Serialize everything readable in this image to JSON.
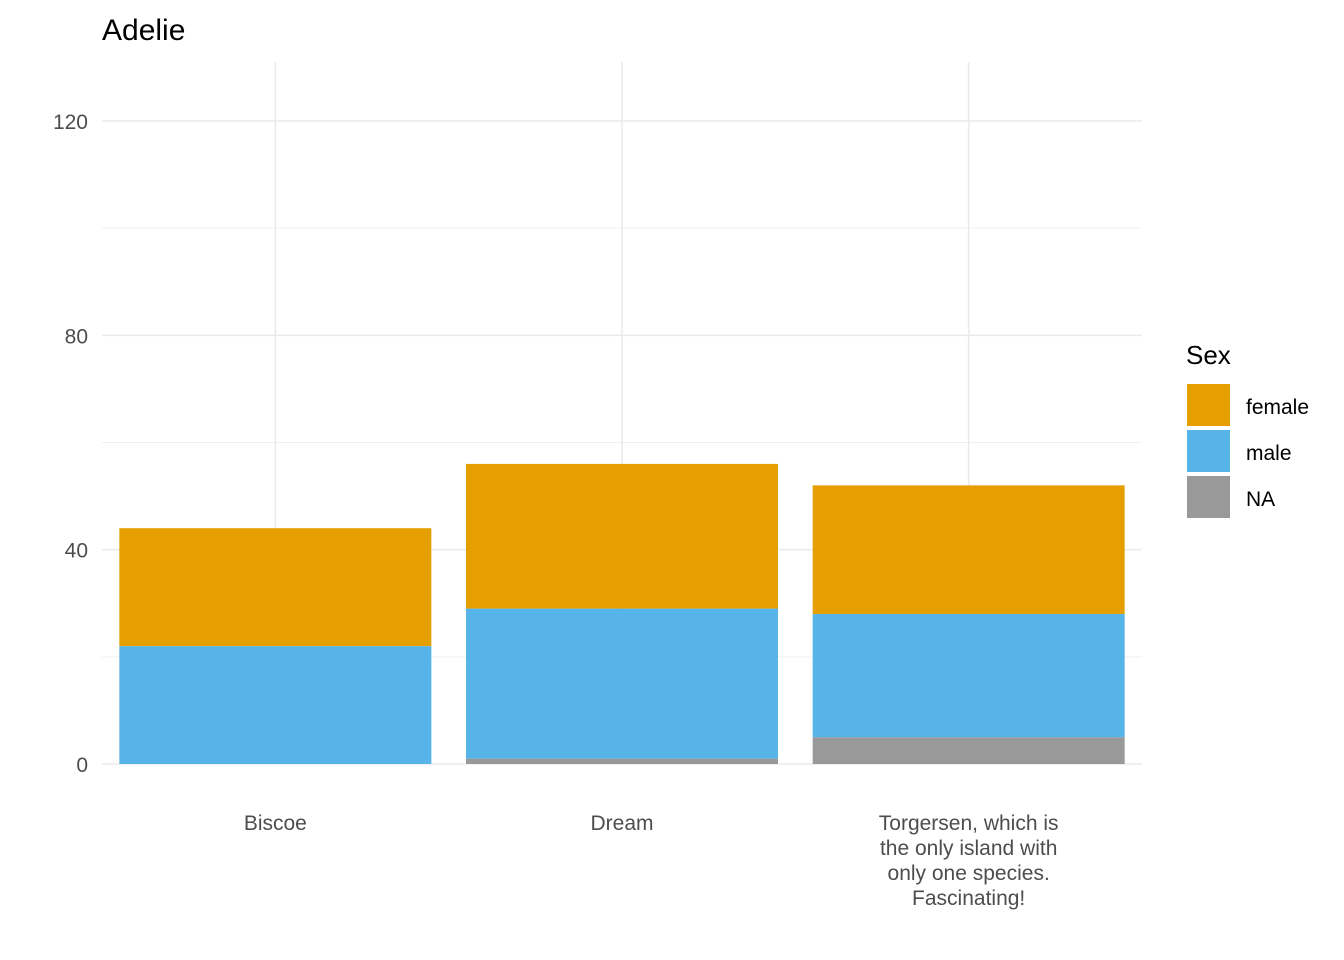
{
  "chart_data": {
    "type": "bar",
    "stacked": true,
    "title": "Adelie",
    "xlabel": "",
    "ylabel": "",
    "categories": [
      "Biscoe",
      "Dream",
      "Torgersen, which is the only island with only one species. Fascinating!"
    ],
    "category_lines": [
      [
        "Biscoe"
      ],
      [
        "Dream"
      ],
      [
        "Torgersen, which is",
        "the only island with",
        "only one species.",
        "Fascinating!"
      ]
    ],
    "series": [
      {
        "name": "NA",
        "color": "#999999",
        "values": [
          0,
          1,
          5
        ]
      },
      {
        "name": "male",
        "color": "#56B4E9",
        "values": [
          22,
          28,
          23
        ]
      },
      {
        "name": "female",
        "color": "#E69F00",
        "values": [
          22,
          27,
          24
        ]
      }
    ],
    "ylim": [
      0,
      131
    ],
    "yticks": [
      0,
      40,
      80,
      120
    ],
    "grid": true,
    "legend": {
      "title": "Sex",
      "position": "right",
      "entries": [
        {
          "name": "female",
          "color": "#E69F00"
        },
        {
          "name": "male",
          "color": "#56B4E9"
        },
        {
          "name": "NA",
          "color": "#999999"
        }
      ]
    }
  }
}
